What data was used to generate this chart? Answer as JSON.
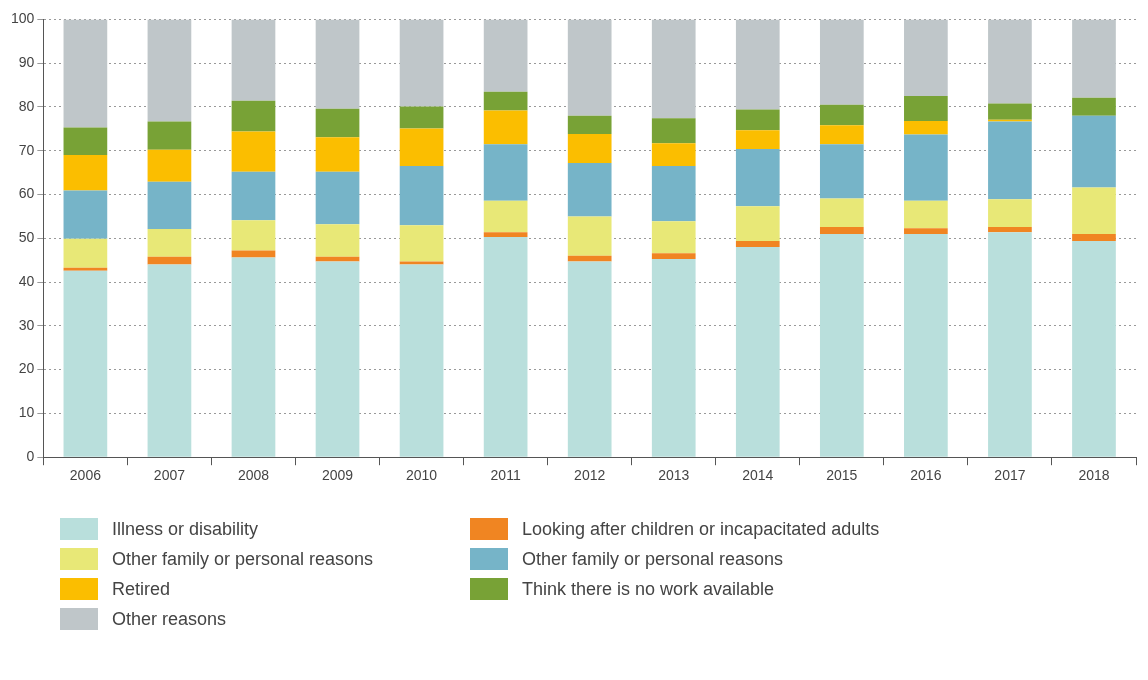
{
  "chart_data": {
    "type": "bar",
    "stacked": true,
    "categories": [
      "2006",
      "2007",
      "2008",
      "2009",
      "2010",
      "2011",
      "2012",
      "2013",
      "2014",
      "2015",
      "2016",
      "2017",
      "2018"
    ],
    "series": [
      {
        "name": "Illness or disability",
        "color": "#b9dfdc",
        "values": [
          42.6,
          44.0,
          45.6,
          44.7,
          44.0,
          50.3,
          44.7,
          45.3,
          48.0,
          51.0,
          51.0,
          51.4,
          49.4
        ]
      },
      {
        "name": "Looking after children or incapacitated adults",
        "color": "#f08522",
        "values": [
          0.7,
          1.8,
          1.6,
          1.1,
          0.7,
          1.1,
          1.3,
          1.3,
          1.4,
          1.6,
          1.3,
          1.2,
          1.6
        ]
      },
      {
        "name": "Other family or personal reasons",
        "color": "#e8e877",
        "values": [
          6.6,
          6.3,
          6.9,
          7.4,
          8.3,
          7.2,
          9.0,
          7.3,
          7.9,
          6.5,
          6.3,
          6.3,
          10.6
        ]
      },
      {
        "name": "Other family or personal reasons",
        "color": "#76b4c8",
        "values": [
          11.0,
          10.8,
          11.1,
          12.0,
          13.5,
          12.9,
          12.2,
          12.6,
          13.1,
          12.4,
          15.1,
          17.8,
          16.4
        ]
      },
      {
        "name": "Retired",
        "color": "#fbbe00",
        "values": [
          8.1,
          7.3,
          9.2,
          7.9,
          8.6,
          7.7,
          6.6,
          5.2,
          4.3,
          4.3,
          3.1,
          0.4,
          0
        ]
      },
      {
        "name": "Think there is no work available",
        "color": "#78a236",
        "values": [
          6.3,
          6.5,
          7.0,
          6.5,
          5.0,
          4.3,
          4.2,
          5.7,
          4.7,
          4.7,
          5.7,
          3.7,
          4.1
        ]
      },
      {
        "name": "Other reasons",
        "color": "#bfc6c9",
        "values": [
          24.7,
          23.3,
          18.6,
          20.4,
          19.9,
          16.5,
          22.0,
          22.6,
          20.6,
          19.5,
          17.5,
          19.2,
          17.9
        ]
      }
    ],
    "ylim": [
      0,
      100
    ],
    "yticks": [
      0,
      10,
      20,
      30,
      40,
      50,
      60,
      70,
      80,
      90,
      100
    ],
    "grid": "y",
    "legend": "bottom"
  }
}
